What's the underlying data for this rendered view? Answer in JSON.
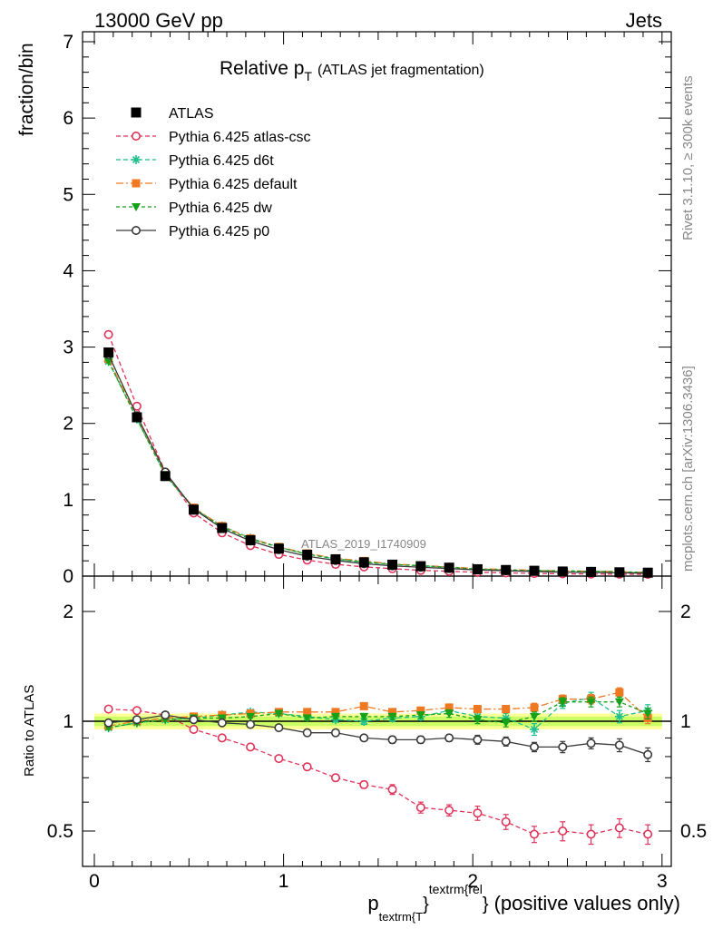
{
  "header": {
    "left": "13000 GeV pp",
    "right": "Jets"
  },
  "side_text": {
    "top": "Rivet 3.1.10, ≥ 300k events",
    "bottom": "mcplots.cern.ch [arXiv:1306.3436]"
  },
  "watermark": "ATLAS_2019_I1740909",
  "chart_data": {
    "type": "line",
    "title": "Relative p",
    "title_sub": "T",
    "title_suffix": "(ATLAS jet fragmentation)",
    "ylabel": "fraction/bin",
    "ratio_ylabel": "Ratio to ATLAS",
    "xlabel": {
      "p": "p",
      "sub": "textrm{T",
      "close1": "}",
      "sup": "textrm{rel",
      "close2": "}",
      "rest": "(positive values only)"
    },
    "xlim": [
      -0.05,
      3.05
    ],
    "ylim": [
      0,
      7.1
    ],
    "ratio_ylim": [
      0.34,
      2.3
    ],
    "x_ticks": [
      "0",
      "1",
      "2",
      "3"
    ],
    "y_ticks": [
      "0",
      "1",
      "2",
      "3",
      "4",
      "5",
      "6",
      "7"
    ],
    "ratio_ticks": [
      "0.5",
      "1",
      "2"
    ],
    "x": [
      0.075,
      0.225,
      0.375,
      0.525,
      0.675,
      0.825,
      0.975,
      1.125,
      1.275,
      1.425,
      1.575,
      1.725,
      1.875,
      2.025,
      2.175,
      2.325,
      2.475,
      2.625,
      2.775,
      2.925
    ],
    "data": {
      "name": "ATLAS",
      "values": [
        2.93,
        2.08,
        1.31,
        0.87,
        0.63,
        0.47,
        0.36,
        0.28,
        0.22,
        0.18,
        0.15,
        0.13,
        0.11,
        0.09,
        0.08,
        0.07,
        0.06,
        0.055,
        0.05,
        0.045
      ]
    },
    "series": [
      {
        "name": "Pythia 6.425 atlas-csc",
        "color": "#e0335a",
        "marker": "open-circle",
        "dash": "5,3",
        "ratio": [
          1.08,
          1.07,
          1.04,
          0.95,
          0.9,
          0.85,
          0.79,
          0.75,
          0.7,
          0.67,
          0.65,
          0.58,
          0.57,
          0.56,
          0.53,
          0.49,
          0.5,
          0.49,
          0.51,
          0.49
        ],
        "ratio_err": [
          0.01,
          0.01,
          0.01,
          0.01,
          0.01,
          0.01,
          0.01,
          0.01,
          0.015,
          0.015,
          0.02,
          0.02,
          0.02,
          0.025,
          0.025,
          0.025,
          0.03,
          0.03,
          0.03,
          0.03
        ]
      },
      {
        "name": "Pythia 6.425 d6t",
        "color": "#1fbf8f",
        "marker": "star",
        "dash": "5,3",
        "ratio": [
          0.96,
          0.99,
          1.01,
          1.02,
          1.04,
          1.06,
          1.05,
          1.03,
          1.01,
          1.0,
          1.02,
          1.03,
          1.07,
          1.03,
          1.02,
          0.95,
          1.12,
          1.16,
          1.03,
          1.07
        ],
        "ratio_err": [
          0.01,
          0.01,
          0.01,
          0.01,
          0.01,
          0.01,
          0.015,
          0.015,
          0.015,
          0.02,
          0.02,
          0.02,
          0.025,
          0.025,
          0.03,
          0.035,
          0.035,
          0.04,
          0.04,
          0.04
        ]
      },
      {
        "name": "Pythia 6.425 default",
        "color": "#f07820",
        "marker": "square",
        "dash": "8,3,2,3",
        "ratio": [
          0.97,
          1.0,
          1.02,
          1.03,
          1.04,
          1.05,
          1.06,
          1.06,
          1.06,
          1.1,
          1.06,
          1.07,
          1.09,
          1.08,
          1.08,
          1.09,
          1.15,
          1.15,
          1.2,
          1.02
        ],
        "ratio_err": [
          0.01,
          0.01,
          0.01,
          0.01,
          0.01,
          0.01,
          0.015,
          0.015,
          0.015,
          0.02,
          0.02,
          0.02,
          0.025,
          0.025,
          0.025,
          0.03,
          0.03,
          0.035,
          0.035,
          0.035
        ]
      },
      {
        "name": "Pythia 6.425 dw",
        "color": "#15a11a",
        "marker": "down-triangle",
        "dash": "4,3",
        "ratio": [
          0.96,
          0.99,
          1.01,
          1.02,
          1.02,
          1.03,
          1.05,
          1.02,
          1.03,
          1.03,
          1.03,
          1.04,
          1.05,
          1.01,
          0.99,
          1.03,
          1.13,
          1.13,
          1.13,
          1.05
        ],
        "ratio_err": [
          0.01,
          0.01,
          0.01,
          0.01,
          0.01,
          0.01,
          0.015,
          0.015,
          0.015,
          0.02,
          0.02,
          0.02,
          0.025,
          0.025,
          0.025,
          0.03,
          0.03,
          0.035,
          0.035,
          0.035
        ]
      },
      {
        "name": "Pythia 6.425 p0",
        "color": "#3a3a3a",
        "marker": "open-circle",
        "dash": "",
        "ratio": [
          0.99,
          1.01,
          1.04,
          1.01,
          0.99,
          0.98,
          0.96,
          0.93,
          0.93,
          0.9,
          0.89,
          0.89,
          0.9,
          0.89,
          0.88,
          0.85,
          0.85,
          0.87,
          0.86,
          0.81
        ],
        "ratio_err": [
          0.01,
          0.01,
          0.01,
          0.01,
          0.01,
          0.01,
          0.01,
          0.012,
          0.015,
          0.015,
          0.02,
          0.02,
          0.02,
          0.025,
          0.025,
          0.025,
          0.03,
          0.03,
          0.035,
          0.035
        ]
      }
    ],
    "uncertainty_band": {
      "inner": 0.03,
      "outer": 0.05,
      "inner_color": "#ccff66",
      "outer_color": "#ffff99"
    },
    "grid": false,
    "legend": "top-left"
  }
}
